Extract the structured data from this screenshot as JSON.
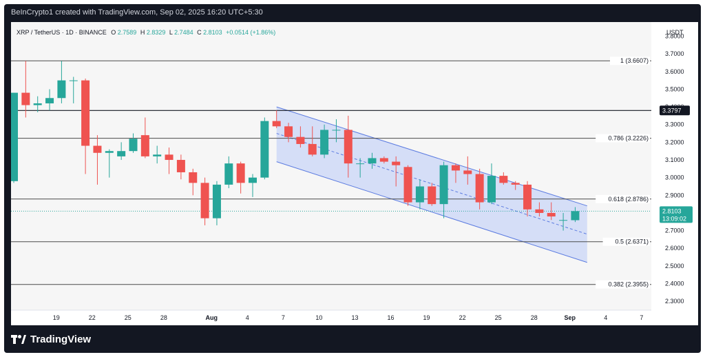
{
  "header": {
    "attribution": "BeInCrypto1 created with TradingView.com, Sep 02, 2025 16:20 UTC+5:30"
  },
  "footer": {
    "brand_name": "TradingView",
    "brand_icon": "tradingview-logo-icon"
  },
  "legend": {
    "symbol": "XRP / TetherUS · 1D · BINANCE",
    "o_label": "O",
    "o_value": "2.7589",
    "h_label": "H",
    "h_value": "2.8329",
    "l_label": "L",
    "l_value": "2.7484",
    "c_label": "C",
    "c_value": "2.8103",
    "change": "+0.0514 (+1.86%)",
    "up_color": "#26a69a"
  },
  "chart_data": {
    "type": "candlestick",
    "currency": "USDT",
    "ylim": [
      2.25,
      3.88
    ],
    "y_ticks": [
      "3.8000",
      "3.7000",
      "3.6000",
      "3.5000",
      "3.4000",
      "3.3000",
      "3.2000",
      "3.1000",
      "3.0000",
      "2.9000",
      "2.8000",
      "2.7000",
      "2.6000",
      "2.5000",
      "2.4000",
      "2.3000"
    ],
    "x_ticks": [
      {
        "label": "19",
        "index": 2
      },
      {
        "label": "22",
        "index": 5
      },
      {
        "label": "25",
        "index": 8
      },
      {
        "label": "28",
        "index": 11
      },
      {
        "label": "Aug",
        "index": 15
      },
      {
        "label": "4",
        "index": 18
      },
      {
        "label": "7",
        "index": 21
      },
      {
        "label": "10",
        "index": 24
      },
      {
        "label": "13",
        "index": 27
      },
      {
        "label": "16",
        "index": 30
      },
      {
        "label": "19",
        "index": 33
      },
      {
        "label": "22",
        "index": 36
      },
      {
        "label": "25",
        "index": 39
      },
      {
        "label": "28",
        "index": 42
      },
      {
        "label": "Sep",
        "index": 45
      },
      {
        "label": "4",
        "index": 48
      },
      {
        "label": "7",
        "index": 51
      }
    ],
    "candles": [
      {
        "o": 2.98,
        "h": 3.48,
        "l": 2.97,
        "c": 3.48
      },
      {
        "o": 3.48,
        "h": 3.66,
        "l": 3.34,
        "c": 3.41
      },
      {
        "o": 3.41,
        "h": 3.46,
        "l": 3.37,
        "c": 3.42
      },
      {
        "o": 3.42,
        "h": 3.5,
        "l": 3.38,
        "c": 3.45
      },
      {
        "o": 3.45,
        "h": 3.66,
        "l": 3.42,
        "c": 3.55
      },
      {
        "o": 3.55,
        "h": 3.57,
        "l": 3.42,
        "c": 3.55
      },
      {
        "o": 3.55,
        "h": 3.56,
        "l": 3.02,
        "c": 3.18
      },
      {
        "o": 3.18,
        "h": 3.24,
        "l": 2.96,
        "c": 3.14
      },
      {
        "o": 3.14,
        "h": 3.16,
        "l": 3.0,
        "c": 3.15
      },
      {
        "o": 3.12,
        "h": 3.2,
        "l": 3.1,
        "c": 3.15
      },
      {
        "o": 3.15,
        "h": 3.25,
        "l": 3.14,
        "c": 3.22
      },
      {
        "o": 3.24,
        "h": 3.34,
        "l": 3.11,
        "c": 3.12
      },
      {
        "o": 3.12,
        "h": 3.18,
        "l": 3.08,
        "c": 3.13
      },
      {
        "o": 3.13,
        "h": 3.17,
        "l": 3.02,
        "c": 3.1
      },
      {
        "o": 3.1,
        "h": 3.13,
        "l": 2.99,
        "c": 3.03
      },
      {
        "o": 3.03,
        "h": 3.05,
        "l": 2.9,
        "c": 2.97
      },
      {
        "o": 2.97,
        "h": 3.0,
        "l": 2.73,
        "c": 2.77
      },
      {
        "o": 2.77,
        "h": 2.98,
        "l": 2.73,
        "c": 2.96
      },
      {
        "o": 2.96,
        "h": 3.12,
        "l": 2.94,
        "c": 3.08
      },
      {
        "o": 3.08,
        "h": 3.09,
        "l": 2.91,
        "c": 2.97
      },
      {
        "o": 2.97,
        "h": 3.02,
        "l": 2.89,
        "c": 3.0
      },
      {
        "o": 3.0,
        "h": 3.34,
        "l": 2.99,
        "c": 3.32
      },
      {
        "o": 3.32,
        "h": 3.38,
        "l": 3.28,
        "c": 3.29
      },
      {
        "o": 3.29,
        "h": 3.31,
        "l": 3.2,
        "c": 3.23
      },
      {
        "o": 3.23,
        "h": 3.29,
        "l": 3.17,
        "c": 3.19
      },
      {
        "o": 3.19,
        "h": 3.29,
        "l": 3.12,
        "c": 3.13
      },
      {
        "o": 3.13,
        "h": 3.3,
        "l": 3.11,
        "c": 3.27
      },
      {
        "o": 3.27,
        "h": 3.33,
        "l": 3.2,
        "c": 3.27
      },
      {
        "o": 3.27,
        "h": 3.35,
        "l": 3.0,
        "c": 3.08
      },
      {
        "o": 3.08,
        "h": 3.11,
        "l": 3.0,
        "c": 3.08
      },
      {
        "o": 3.08,
        "h": 3.14,
        "l": 3.05,
        "c": 3.11
      },
      {
        "o": 3.11,
        "h": 3.12,
        "l": 3.08,
        "c": 3.09
      },
      {
        "o": 3.09,
        "h": 3.12,
        "l": 2.95,
        "c": 3.07
      },
      {
        "o": 3.06,
        "h": 3.07,
        "l": 2.84,
        "c": 2.86
      },
      {
        "o": 2.86,
        "h": 2.99,
        "l": 2.82,
        "c": 2.95
      },
      {
        "o": 2.95,
        "h": 2.97,
        "l": 2.84,
        "c": 2.85
      },
      {
        "o": 2.85,
        "h": 3.09,
        "l": 2.77,
        "c": 3.07
      },
      {
        "o": 3.07,
        "h": 3.08,
        "l": 2.97,
        "c": 3.04
      },
      {
        "o": 3.04,
        "h": 3.12,
        "l": 2.96,
        "c": 3.02
      },
      {
        "o": 3.02,
        "h": 3.05,
        "l": 2.82,
        "c": 2.86
      },
      {
        "o": 2.86,
        "h": 3.08,
        "l": 2.85,
        "c": 3.01
      },
      {
        "o": 3.01,
        "h": 3.03,
        "l": 2.96,
        "c": 2.97
      },
      {
        "o": 2.97,
        "h": 2.98,
        "l": 2.93,
        "c": 2.96
      },
      {
        "o": 2.96,
        "h": 2.98,
        "l": 2.78,
        "c": 2.82
      },
      {
        "o": 2.82,
        "h": 2.86,
        "l": 2.78,
        "c": 2.8
      },
      {
        "o": 2.8,
        "h": 2.86,
        "l": 2.76,
        "c": 2.78
      },
      {
        "o": 2.76,
        "h": 2.8,
        "l": 2.7,
        "c": 2.76
      },
      {
        "o": 2.7589,
        "h": 2.8329,
        "l": 2.7484,
        "c": 2.8103
      }
    ],
    "fib_levels": [
      {
        "label": "1 (3.6607)",
        "value": 3.6607
      },
      {
        "label": "0.786 (3.2226)",
        "value": 3.2226
      },
      {
        "label": "0.618 (2.8786)",
        "value": 2.8786
      },
      {
        "label": "0.5 (2.6371)",
        "value": 2.6371
      },
      {
        "label": "0.382 (2.3955)",
        "value": 2.3955
      }
    ],
    "horizontal_level": {
      "label": "3.3797",
      "value": 3.3797
    },
    "channel": {
      "start_index": 22,
      "end_index": 48,
      "upper": [
        3.4,
        2.84
      ],
      "lower": [
        3.09,
        2.52
      ],
      "mid": [
        3.25,
        2.68
      ]
    },
    "last_price": {
      "value": 2.8103,
      "label": "2.8103",
      "countdown": "13:09:02"
    },
    "colors": {
      "up": "#26a69a",
      "down": "#ef5350",
      "channel_fill": "#c9d6f7",
      "channel_line": "#5b7be0",
      "level_line": "#4a4a4a",
      "price_label_bg": "#26a69a",
      "level_label_bg": "#131722"
    }
  }
}
